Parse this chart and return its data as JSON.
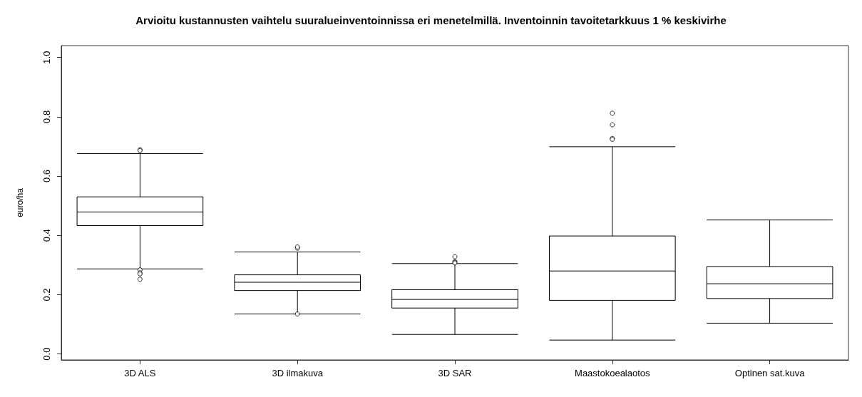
{
  "chart_data": {
    "type": "box",
    "title": "Arvioitu kustannusten vaihtelu suuralueinventoinnissa eri menetelmillä. Inventoinnin tavoitetarkkuus 1 % keskivirhe",
    "ylabel": "euro/ha",
    "categories": [
      "3D ALS",
      "3D ilmakuva",
      "3D SAR",
      "Maastokoealaotos",
      "Optinen sat.kuva"
    ],
    "boxes": [
      {
        "low": 0.287,
        "q1": 0.433,
        "median": 0.479,
        "q3": 0.53,
        "high": 0.676,
        "outliers": [
          0.689,
          0.686,
          0.284,
          0.274,
          0.27,
          0.252
        ]
      },
      {
        "low": 0.135,
        "q1": 0.214,
        "median": 0.242,
        "q3": 0.267,
        "high": 0.344,
        "outliers": [
          0.357,
          0.361,
          0.135
        ]
      },
      {
        "low": 0.066,
        "q1": 0.155,
        "median": 0.184,
        "q3": 0.217,
        "high": 0.305,
        "outliers": [
          0.328,
          0.312,
          0.309,
          0.307
        ]
      },
      {
        "low": 0.047,
        "q1": 0.181,
        "median": 0.28,
        "q3": 0.398,
        "high": 0.699,
        "outliers": [
          0.812,
          0.773,
          0.727,
          0.724
        ]
      },
      {
        "low": 0.104,
        "q1": 0.187,
        "median": 0.237,
        "q3": 0.295,
        "high": 0.452
      }
    ],
    "color": "#000000",
    "ylim": [
      -0.02,
      1.04
    ],
    "yticks": [
      {
        "value": 0,
        "label": "0.0"
      },
      0.2,
      0.4,
      0.6,
      0.8,
      {
        "value": 1,
        "label": "1.0"
      }
    ],
    "grid": false
  }
}
